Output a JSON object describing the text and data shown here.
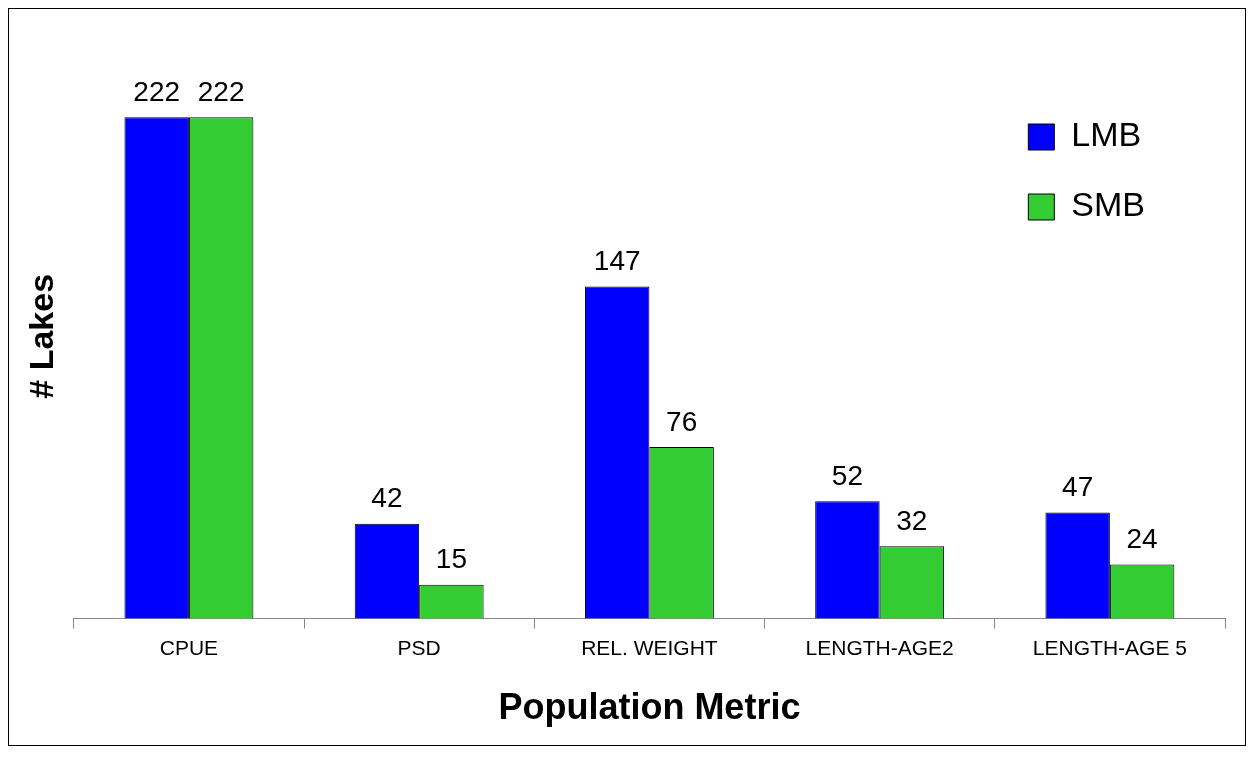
{
  "chart_data": {
    "type": "bar",
    "xlabel": "Population Metric",
    "ylabel": "# Lakes",
    "categories": [
      "CPUE",
      "PSD",
      "REL. WEIGHT",
      "LENGTH-AGE2",
      "LENGTH-AGE 5"
    ],
    "series": [
      {
        "name": "LMB",
        "color": "#0000ff",
        "values": [
          222,
          42,
          147,
          52,
          47
        ]
      },
      {
        "name": "SMB",
        "color": "#33cc33",
        "values": [
          222,
          15,
          76,
          32,
          24
        ]
      }
    ],
    "data_labels": true,
    "legend": "top right",
    "grid": false
  }
}
